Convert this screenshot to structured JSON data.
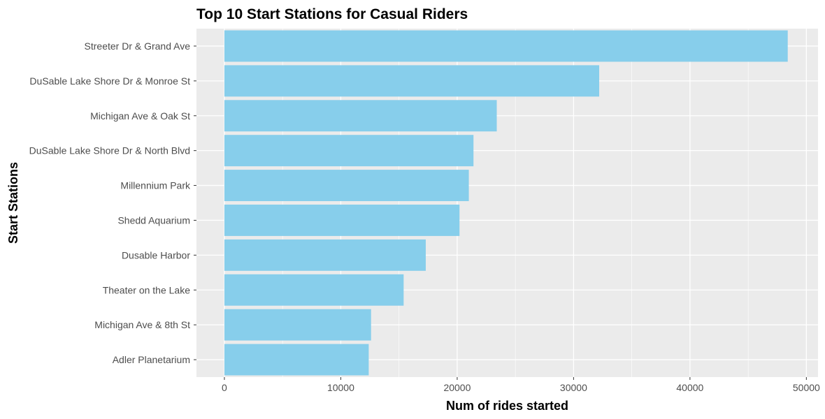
{
  "chart_data": {
    "type": "bar",
    "orientation": "horizontal",
    "title": "Top 10 Start Stations for Casual Riders",
    "xlabel": "Num of rides started",
    "ylabel": "Start Stations",
    "categories": [
      "Streeter Dr & Grand Ave",
      "DuSable Lake Shore Dr & Monroe St",
      "Michigan Ave & Oak St",
      "DuSable Lake Shore Dr & North Blvd",
      "Millennium Park",
      "Shedd Aquarium",
      "Dusable Harbor",
      "Theater on the Lake",
      "Michigan Ave & 8th St",
      "Adler Planetarium"
    ],
    "values": [
      48400,
      32200,
      23400,
      21400,
      21000,
      20200,
      17300,
      15400,
      12600,
      12400
    ],
    "xlim": [
      -2400,
      51000
    ],
    "xticks": [
      0,
      10000,
      20000,
      30000,
      40000,
      50000
    ],
    "xtick_labels": [
      "0",
      "10000",
      "20000",
      "30000",
      "40000",
      "50000"
    ],
    "grid": true,
    "bar_color": "#87CEEB",
    "panel_color": "#EBEBEB",
    "grid_color": "#FFFFFF"
  }
}
